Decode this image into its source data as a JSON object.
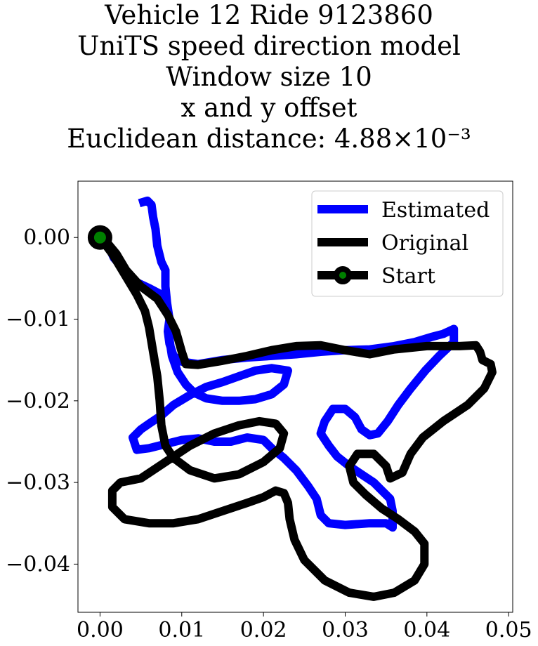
{
  "title_lines": [
    "Vehicle 12 Ride 9123860",
    "UniTS speed direction model",
    "Window size 10",
    "x and y offset",
    "Euclidean distance: 4.88×10⁻³"
  ],
  "colors": {
    "estimated": "#0000ff",
    "original": "#000000",
    "start_fill": "#008000",
    "start_edge": "#000000"
  },
  "chart_data": {
    "type": "line",
    "title": "Vehicle 12 Ride 9123860 UniTS speed direction model Window size 10 x and y offset Euclidean distance: 4.88×10⁻³",
    "xlim": [
      -0.0027,
      0.0505
    ],
    "ylim": [
      -0.0459,
      0.0069
    ],
    "xticks": [
      0.0,
      0.01,
      0.02,
      0.03,
      0.04,
      0.05
    ],
    "xtick_labels": [
      "0.00",
      "0.01",
      "0.02",
      "0.03",
      "0.04",
      "0.05"
    ],
    "yticks": [
      0.0,
      -0.01,
      -0.02,
      -0.03,
      -0.04
    ],
    "ytick_labels": [
      "0.00",
      "−0.01",
      "−0.02",
      "−0.03",
      "−0.04"
    ],
    "legend_position": "top-right",
    "grid": false,
    "series": [
      {
        "name": "Estimated",
        "points": [
          [
            0.0,
            0.0
          ],
          [
            0.001,
            -0.001
          ],
          [
            0.0017,
            -0.0025
          ],
          [
            0.003,
            -0.004
          ],
          [
            0.0045,
            -0.0055
          ],
          [
            0.006,
            -0.0062
          ],
          [
            0.0075,
            -0.007
          ],
          [
            0.0082,
            -0.0085
          ],
          [
            0.0085,
            -0.01
          ],
          [
            0.0083,
            -0.0115
          ],
          [
            0.0085,
            -0.013
          ],
          [
            0.009,
            -0.0145
          ],
          [
            0.01,
            -0.0152
          ],
          [
            0.012,
            -0.0155
          ],
          [
            0.015,
            -0.015
          ],
          [
            0.018,
            -0.0147
          ],
          [
            0.021,
            -0.0145
          ],
          [
            0.024,
            -0.0143
          ],
          [
            0.027,
            -0.014
          ],
          [
            0.03,
            -0.0138
          ],
          [
            0.033,
            -0.0137
          ],
          [
            0.036,
            -0.0133
          ],
          [
            0.0385,
            -0.0128
          ],
          [
            0.0405,
            -0.0122
          ],
          [
            0.042,
            -0.0118
          ],
          [
            0.0433,
            -0.0112
          ],
          [
            0.0433,
            -0.0128
          ],
          [
            0.0415,
            -0.0145
          ],
          [
            0.0398,
            -0.0163
          ],
          [
            0.038,
            -0.0185
          ],
          [
            0.0365,
            -0.0205
          ],
          [
            0.0352,
            -0.0225
          ],
          [
            0.034,
            -0.024
          ],
          [
            0.033,
            -0.0242
          ],
          [
            0.032,
            -0.0235
          ],
          [
            0.0312,
            -0.022
          ],
          [
            0.03,
            -0.021
          ],
          [
            0.0285,
            -0.021
          ],
          [
            0.0275,
            -0.0225
          ],
          [
            0.027,
            -0.024
          ],
          [
            0.028,
            -0.0255
          ],
          [
            0.029,
            -0.0268
          ],
          [
            0.0305,
            -0.028
          ],
          [
            0.032,
            -0.029
          ],
          [
            0.0335,
            -0.03
          ],
          [
            0.0345,
            -0.031
          ],
          [
            0.0355,
            -0.032
          ],
          [
            0.0358,
            -0.0335
          ],
          [
            0.0358,
            -0.0355
          ],
          [
            0.035,
            -0.035
          ],
          [
            0.033,
            -0.035
          ],
          [
            0.03,
            -0.0352
          ],
          [
            0.028,
            -0.035
          ],
          [
            0.027,
            -0.034
          ],
          [
            0.0265,
            -0.032
          ],
          [
            0.0255,
            -0.0305
          ],
          [
            0.024,
            -0.0285
          ],
          [
            0.0225,
            -0.027
          ],
          [
            0.021,
            -0.0258
          ],
          [
            0.02,
            -0.0248
          ],
          [
            0.018,
            -0.0245
          ],
          [
            0.016,
            -0.025
          ],
          [
            0.014,
            -0.025
          ],
          [
            0.012,
            -0.0246
          ],
          [
            0.01,
            -0.0248
          ],
          [
            0.008,
            -0.0253
          ],
          [
            0.006,
            -0.0258
          ],
          [
            0.0045,
            -0.026
          ],
          [
            0.004,
            -0.0245
          ],
          [
            0.005,
            -0.0235
          ],
          [
            0.006,
            -0.0228
          ],
          [
            0.0075,
            -0.0218
          ],
          [
            0.009,
            -0.0205
          ],
          [
            0.011,
            -0.0193
          ],
          [
            0.013,
            -0.0183
          ],
          [
            0.015,
            -0.0177
          ],
          [
            0.017,
            -0.017
          ],
          [
            0.019,
            -0.0163
          ],
          [
            0.021,
            -0.016
          ],
          [
            0.023,
            -0.0163
          ],
          [
            0.0225,
            -0.018
          ],
          [
            0.021,
            -0.0192
          ],
          [
            0.019,
            -0.0198
          ],
          [
            0.017,
            -0.02
          ],
          [
            0.015,
            -0.02
          ],
          [
            0.013,
            -0.0197
          ],
          [
            0.0115,
            -0.019
          ],
          [
            0.0105,
            -0.018
          ],
          [
            0.0095,
            -0.0165
          ],
          [
            0.0088,
            -0.0145
          ],
          [
            0.0085,
            -0.0125
          ],
          [
            0.0085,
            -0.01
          ],
          [
            0.0082,
            -0.008
          ],
          [
            0.008,
            -0.006
          ],
          [
            0.008,
            -0.004
          ],
          [
            0.0075,
            -0.003
          ],
          [
            0.007,
            -0.001
          ],
          [
            0.0068,
            0.001
          ],
          [
            0.0065,
            0.0025
          ],
          [
            0.0063,
            0.004
          ],
          [
            0.0058,
            0.0045
          ],
          [
            0.0048,
            0.0042
          ]
        ]
      },
      {
        "name": "Original",
        "points": [
          [
            0.0,
            0.0
          ],
          [
            0.0015,
            -0.002
          ],
          [
            0.003,
            -0.0045
          ],
          [
            0.0045,
            -0.007
          ],
          [
            0.0055,
            -0.009
          ],
          [
            0.006,
            -0.011
          ],
          [
            0.0065,
            -0.014
          ],
          [
            0.007,
            -0.017
          ],
          [
            0.0073,
            -0.02
          ],
          [
            0.0075,
            -0.023
          ],
          [
            0.008,
            -0.0255
          ],
          [
            0.009,
            -0.027
          ],
          [
            0.011,
            -0.0285
          ],
          [
            0.014,
            -0.0295
          ],
          [
            0.017,
            -0.029
          ],
          [
            0.02,
            -0.0275
          ],
          [
            0.022,
            -0.0258
          ],
          [
            0.0225,
            -0.024
          ],
          [
            0.0215,
            -0.0228
          ],
          [
            0.0195,
            -0.0225
          ],
          [
            0.017,
            -0.023
          ],
          [
            0.014,
            -0.024
          ],
          [
            0.011,
            -0.0255
          ],
          [
            0.008,
            -0.0275
          ],
          [
            0.005,
            -0.0295
          ],
          [
            0.0025,
            -0.03
          ],
          [
            0.0015,
            -0.031
          ],
          [
            0.0015,
            -0.033
          ],
          [
            0.003,
            -0.0345
          ],
          [
            0.006,
            -0.035
          ],
          [
            0.009,
            -0.035
          ],
          [
            0.012,
            -0.0345
          ],
          [
            0.015,
            -0.0335
          ],
          [
            0.018,
            -0.0325
          ],
          [
            0.02,
            -0.0318
          ],
          [
            0.0215,
            -0.031
          ],
          [
            0.0225,
            -0.0313
          ],
          [
            0.023,
            -0.0325
          ],
          [
            0.0232,
            -0.0345
          ],
          [
            0.0238,
            -0.037
          ],
          [
            0.025,
            -0.0395
          ],
          [
            0.0275,
            -0.042
          ],
          [
            0.0305,
            -0.0435
          ],
          [
            0.0335,
            -0.044
          ],
          [
            0.036,
            -0.0435
          ],
          [
            0.0385,
            -0.042
          ],
          [
            0.0397,
            -0.04
          ],
          [
            0.0397,
            -0.0375
          ],
          [
            0.0385,
            -0.036
          ],
          [
            0.0365,
            -0.0345
          ],
          [
            0.0345,
            -0.0332
          ],
          [
            0.0325,
            -0.0315
          ],
          [
            0.031,
            -0.03
          ],
          [
            0.0305,
            -0.028
          ],
          [
            0.0315,
            -0.0265
          ],
          [
            0.0335,
            -0.0265
          ],
          [
            0.035,
            -0.028
          ],
          [
            0.0355,
            -0.0295
          ],
          [
            0.037,
            -0.0288
          ],
          [
            0.038,
            -0.0265
          ],
          [
            0.0395,
            -0.0245
          ],
          [
            0.042,
            -0.0225
          ],
          [
            0.045,
            -0.0205
          ],
          [
            0.047,
            -0.0185
          ],
          [
            0.048,
            -0.0165
          ],
          [
            0.0478,
            -0.0155
          ],
          [
            0.0468,
            -0.015
          ],
          [
            0.0465,
            -0.014
          ],
          [
            0.046,
            -0.0132
          ],
          [
            0.044,
            -0.0133
          ],
          [
            0.04,
            -0.0133
          ],
          [
            0.036,
            -0.0137
          ],
          [
            0.033,
            -0.0143
          ],
          [
            0.03,
            -0.0138
          ],
          [
            0.027,
            -0.0132
          ],
          [
            0.024,
            -0.0133
          ],
          [
            0.021,
            -0.0138
          ],
          [
            0.018,
            -0.0145
          ],
          [
            0.015,
            -0.0151
          ],
          [
            0.012,
            -0.0156
          ],
          [
            0.0105,
            -0.0155
          ],
          [
            0.01,
            -0.014
          ],
          [
            0.0093,
            -0.0115
          ],
          [
            0.0083,
            -0.0095
          ],
          [
            0.007,
            -0.0075
          ],
          [
            0.005,
            -0.006
          ],
          [
            0.0032,
            -0.004
          ],
          [
            0.002,
            -0.002
          ],
          [
            0.001,
            -0.0008
          ],
          [
            0.0,
            0.0
          ]
        ]
      },
      {
        "name": "Start",
        "points": [
          [
            0.0,
            0.0
          ]
        ]
      }
    ]
  }
}
